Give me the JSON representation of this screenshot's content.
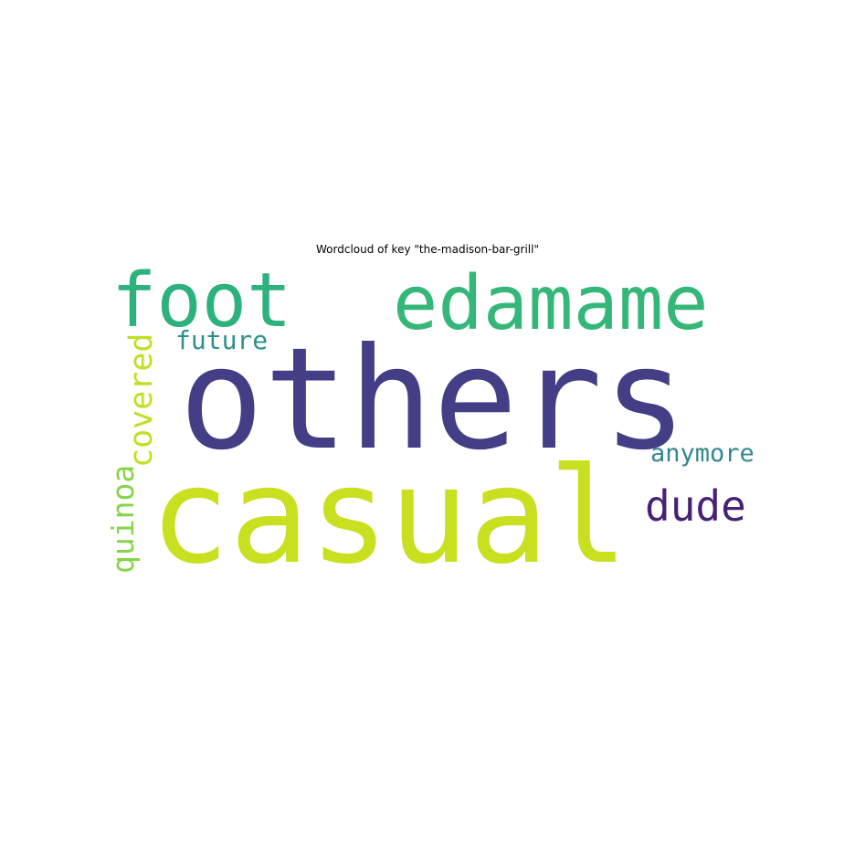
{
  "chart_data": {
    "type": "wordcloud",
    "title": "Wordcloud of key \"the-madison-bar-grill\"",
    "words": [
      {
        "text": "others",
        "rank": 1,
        "color": "#433e85",
        "orientation": "horizontal"
      },
      {
        "text": "casual",
        "rank": 2,
        "color": "#c8e020",
        "orientation": "horizontal"
      },
      {
        "text": "edamame",
        "rank": 3,
        "color": "#35b779",
        "orientation": "horizontal"
      },
      {
        "text": "foot",
        "rank": 4,
        "color": "#2db27d",
        "orientation": "horizontal"
      },
      {
        "text": "dude",
        "rank": 5,
        "color": "#482173",
        "orientation": "horizontal"
      },
      {
        "text": "covered",
        "rank": 6,
        "color": "#c2df23",
        "orientation": "vertical"
      },
      {
        "text": "quinoa",
        "rank": 7,
        "color": "#86d549",
        "orientation": "vertical"
      },
      {
        "text": "future",
        "rank": 8,
        "color": "#2e8f8c",
        "orientation": "horizontal"
      },
      {
        "text": "anymore",
        "rank": 9,
        "color": "#33888d",
        "orientation": "horizontal"
      }
    ]
  }
}
